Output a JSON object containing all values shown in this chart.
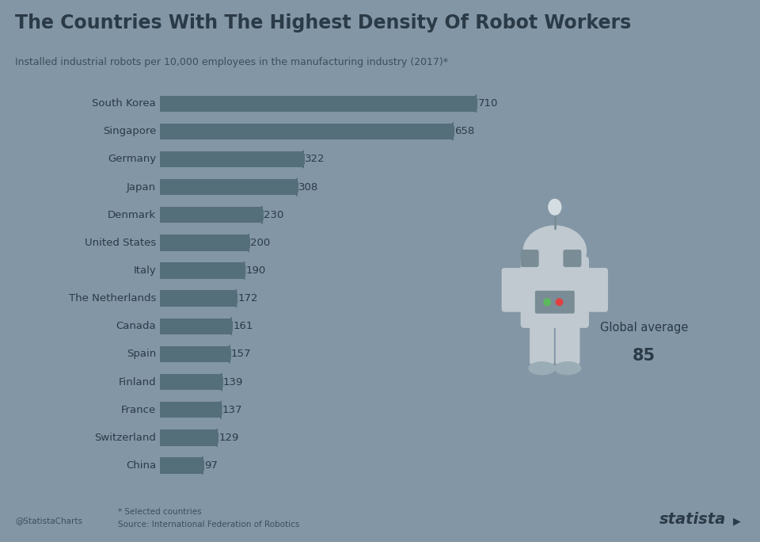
{
  "title": "The Countries With The Highest Density Of Robot Workers",
  "subtitle": "Installed industrial robots per 10,000 employees in the manufacturing industry (2017)*",
  "footer_note": "* Selected countries",
  "footer_source": "Source: International Federation of Robotics",
  "footer_credit": "@StatistaCharts",
  "countries": [
    "South Korea",
    "Singapore",
    "Germany",
    "Japan",
    "Denmark",
    "United States",
    "Italy",
    "The Netherlands",
    "Canada",
    "Spain",
    "Finland",
    "France",
    "Switzerland",
    "China"
  ],
  "values": [
    710,
    658,
    322,
    308,
    230,
    200,
    190,
    172,
    161,
    157,
    139,
    137,
    129,
    97
  ],
  "global_average": 85,
  "bar_color": "#546e7a",
  "bg_color": "#8396a5",
  "title_color": "#2b3a47",
  "subtitle_color": "#3d4f5c",
  "text_color": "#2b3a47",
  "footer_color": "#3d4f5c",
  "annotation_box_color": "#c5cdd4",
  "statista_color": "#2b3a47",
  "robot_body_color": "#bfc9cf",
  "robot_dark_color": "#7a8d96",
  "robot_light_color": "#d4dde2",
  "robot_head_color": "#c8d2d8",
  "robot_feet_color": "#9aacb5"
}
